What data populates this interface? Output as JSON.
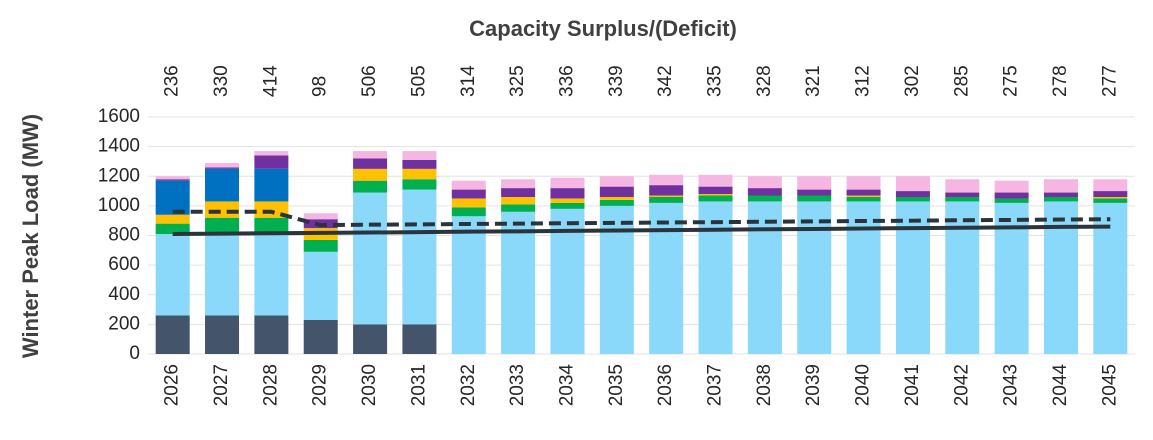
{
  "chart_data": {
    "type": "bar",
    "stacked": true,
    "title": "Capacity Surplus/(Deficit)",
    "y_label": "Winter Peak Load (MW)",
    "categories": [
      "2026",
      "2027",
      "2028",
      "2029",
      "2030",
      "2031",
      "2032",
      "2033",
      "2034",
      "2035",
      "2036",
      "2037",
      "2038",
      "2039",
      "2040",
      "2041",
      "2042",
      "2043",
      "2044",
      "2045"
    ],
    "top_labels": [
      236,
      330,
      414,
      98,
      506,
      505,
      314,
      325,
      336,
      339,
      342,
      335,
      328,
      321,
      312,
      302,
      285,
      275,
      278,
      277
    ],
    "ylim": [
      0,
      1600
    ],
    "yticks": [
      0,
      200,
      400,
      600,
      800,
      1000,
      1200,
      1400,
      1600
    ],
    "grid": true,
    "series": [
      {
        "type": "bar",
        "color": "#44546a",
        "values": [
          260,
          260,
          260,
          230,
          200,
          200,
          0,
          0,
          0,
          0,
          0,
          0,
          0,
          0,
          0,
          0,
          0,
          0,
          0,
          0
        ]
      },
      {
        "type": "bar",
        "color": "#8ad8fa",
        "values": [
          550,
          550,
          550,
          460,
          890,
          910,
          930,
          960,
          980,
          1000,
          1020,
          1030,
          1030,
          1030,
          1030,
          1030,
          1030,
          1020,
          1030,
          1020
        ]
      },
      {
        "type": "bar",
        "color": "#00b050",
        "values": [
          70,
          110,
          110,
          80,
          80,
          70,
          60,
          50,
          40,
          40,
          40,
          40,
          40,
          40,
          30,
          30,
          30,
          30,
          30,
          30
        ]
      },
      {
        "type": "bar",
        "color": "#ffc000",
        "values": [
          60,
          110,
          110,
          80,
          80,
          70,
          60,
          50,
          30,
          20,
          10,
          10,
          0,
          0,
          10,
          0,
          0,
          0,
          0,
          10
        ]
      },
      {
        "type": "bar",
        "color": "#0070c0",
        "values": [
          230,
          220,
          220,
          0,
          0,
          0,
          0,
          0,
          0,
          0,
          0,
          0,
          0,
          0,
          0,
          0,
          0,
          0,
          0,
          0
        ]
      },
      {
        "type": "bar",
        "color": "#7030a0",
        "values": [
          10,
          10,
          90,
          60,
          70,
          60,
          60,
          60,
          70,
          70,
          70,
          50,
          50,
          40,
          40,
          40,
          30,
          40,
          30,
          40
        ]
      },
      {
        "type": "bar",
        "color": "#f6b6e2",
        "values": [
          20,
          30,
          30,
          40,
          50,
          60,
          60,
          60,
          70,
          70,
          70,
          80,
          80,
          90,
          90,
          100,
          90,
          80,
          90,
          80
        ]
      },
      {
        "type": "line",
        "color": "#2b333b",
        "dash": true,
        "values": [
          960,
          960,
          960,
          870,
          873,
          875,
          878,
          880,
          883,
          885,
          888,
          890,
          893,
          895,
          898,
          900,
          903,
          905,
          908,
          910
        ]
      },
      {
        "type": "line",
        "color": "#2b333b",
        "dash": false,
        "values": [
          810,
          813,
          815,
          818,
          820,
          823,
          826,
          828,
          831,
          834,
          836,
          839,
          842,
          844,
          847,
          850,
          852,
          855,
          858,
          860
        ]
      }
    ]
  }
}
